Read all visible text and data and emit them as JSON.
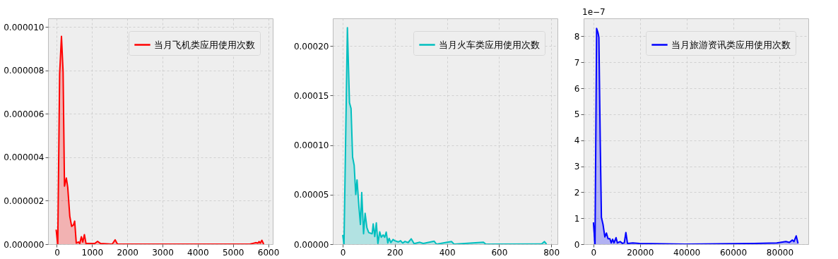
{
  "chart_data": [
    {
      "type": "area",
      "x": [
        -20,
        26,
        79,
        131,
        177,
        217,
        269,
        309,
        368,
        420,
        473,
        506,
        552,
        618,
        650,
        696,
        736,
        782,
        828,
        1077,
        1156,
        1242,
        1570,
        1656,
        1721,
        5480,
        5644,
        5710,
        5742,
        5775,
        5821,
        5874
      ],
      "series": [
        {
          "name": "当月飞机类应用使用次数",
          "color": "#ff0000",
          "values": [
            6.7e-07,
            0,
            7.85e-06,
            9.57e-06,
            7.95e-06,
            2.67e-06,
            3.05e-06,
            2.62e-06,
            1.28e-06,
            8.2e-07,
            8.9e-07,
            1.06e-06,
            5e-08,
            1e-07,
            3e-08,
            3.4e-07,
            1e-07,
            4.4e-07,
            3e-08,
            3e-08,
            1.3e-07,
            3e-08,
            0,
            2e-07,
            0,
            0,
            7e-08,
            5e-08,
            1.2e-07,
            5e-08,
            1.8e-07,
            0
          ]
        }
      ],
      "xlim": [
        -250,
        6130
      ],
      "xticks": [
        0,
        1000,
        2000,
        3000,
        4000,
        5000,
        6000
      ],
      "ylim": [
        0,
        1.04e-05
      ],
      "yticks": [
        {
          "value": 0,
          "label": "0.000000"
        },
        {
          "value": 2e-06,
          "label": "0.000002"
        },
        {
          "value": 4e-06,
          "label": "0.000004"
        },
        {
          "value": 6e-06,
          "label": "0.000006"
        },
        {
          "value": 8e-06,
          "label": "0.000008"
        },
        {
          "value": 1e-05,
          "label": "0.000010"
        }
      ],
      "grid": true,
      "legend": "top right"
    },
    {
      "type": "area",
      "x": [
        0,
        5,
        18,
        26,
        32,
        38,
        44,
        50,
        55,
        62,
        68,
        73,
        80,
        86,
        93,
        100,
        113,
        117,
        123,
        129,
        135,
        142,
        148,
        155,
        161,
        167,
        173,
        178,
        185,
        193,
        200,
        213,
        222,
        230,
        239,
        251,
        263,
        274,
        296,
        309,
        351,
        360,
        405,
        418,
        427,
        540,
        549,
        763,
        774,
        782
      ],
      "series": [
        {
          "name": "当月火车类应用使用次数",
          "color": "#00bfbf",
          "values": [
            9.4e-06,
            0,
            0.0002185,
            0.0001429,
            0.000137,
            8.78e-05,
            7.96e-05,
            5.03e-05,
            6.49e-05,
            3.86e-05,
            1.99e-05,
            5.22e-05,
            1.05e-05,
            3.11e-05,
            1.64e-05,
            1.17e-05,
            1.05e-05,
            2.04e-05,
            7.7e-06,
            2.15e-05,
            7e-07,
            1.24e-05,
            7e-06,
            9.4e-06,
            7e-06,
            1.22e-05,
            1.2e-06,
            5.9e-06,
            1.6e-06,
            4.7e-06,
            3.5e-06,
            2.3e-06,
            3.5e-06,
            1.2e-06,
            2.8e-06,
            1.6e-06,
            5.4e-06,
            5e-07,
            1.9e-06,
            7e-07,
            3e-06,
            0,
            2.1e-06,
            2.6e-06,
            0,
            1.9e-06,
            0,
            2e-07,
            2.6e-06,
            0
          ]
        }
      ],
      "xlim": [
        -38,
        824
      ],
      "xticks": [
        0,
        200,
        400,
        600,
        800
      ],
      "ylim": [
        0,
        0.000228
      ],
      "yticks": [
        {
          "value": 0,
          "label": "0.00000"
        },
        {
          "value": 5e-05,
          "label": "0.00005"
        },
        {
          "value": 0.0001,
          "label": "0.00010"
        },
        {
          "value": 0.00015,
          "label": "0.00015"
        },
        {
          "value": 0.0002,
          "label": "0.00020"
        }
      ],
      "grid": true,
      "legend": "top right"
    },
    {
      "type": "area",
      "x": [
        0,
        690,
        1375,
        1964,
        2357,
        2946,
        3437,
        4124,
        4910,
        5597,
        6285,
        7070,
        7660,
        8250,
        8840,
        9720,
        10310,
        11490,
        12470,
        13260,
        13940,
        14630,
        16890,
        19840,
        39480,
        68940,
        78760,
        82680,
        84160,
        85430,
        86120,
        87100,
        87890
      ],
      "series": [
        {
          "name": "当月旅游资讯类应用使用次数",
          "color": "#0000ff",
          "values": [
            0.84,
            0,
            8.3,
            8.14,
            7.96,
            3.88,
            1.03,
            0.76,
            0.28,
            0.43,
            0.21,
            0.21,
            0.05,
            0.19,
            0.05,
            0.25,
            0.05,
            0.1,
            0.03,
            0.05,
            0.45,
            0.03,
            0.05,
            0.03,
            0,
            0.03,
            0.05,
            0.1,
            0.07,
            0.16,
            0.1,
            0.32,
            0.03
          ]
        }
      ],
      "xlim": [
        -4200,
        92300
      ],
      "xticks": [
        0,
        20000,
        40000,
        60000,
        80000
      ],
      "ylim": [
        0,
        8.69
      ],
      "yticks": [
        0,
        1,
        2,
        3,
        4,
        5,
        6,
        7,
        8
      ],
      "grid": true,
      "legend": "top right",
      "annotations": [
        "1e−7"
      ]
    }
  ]
}
